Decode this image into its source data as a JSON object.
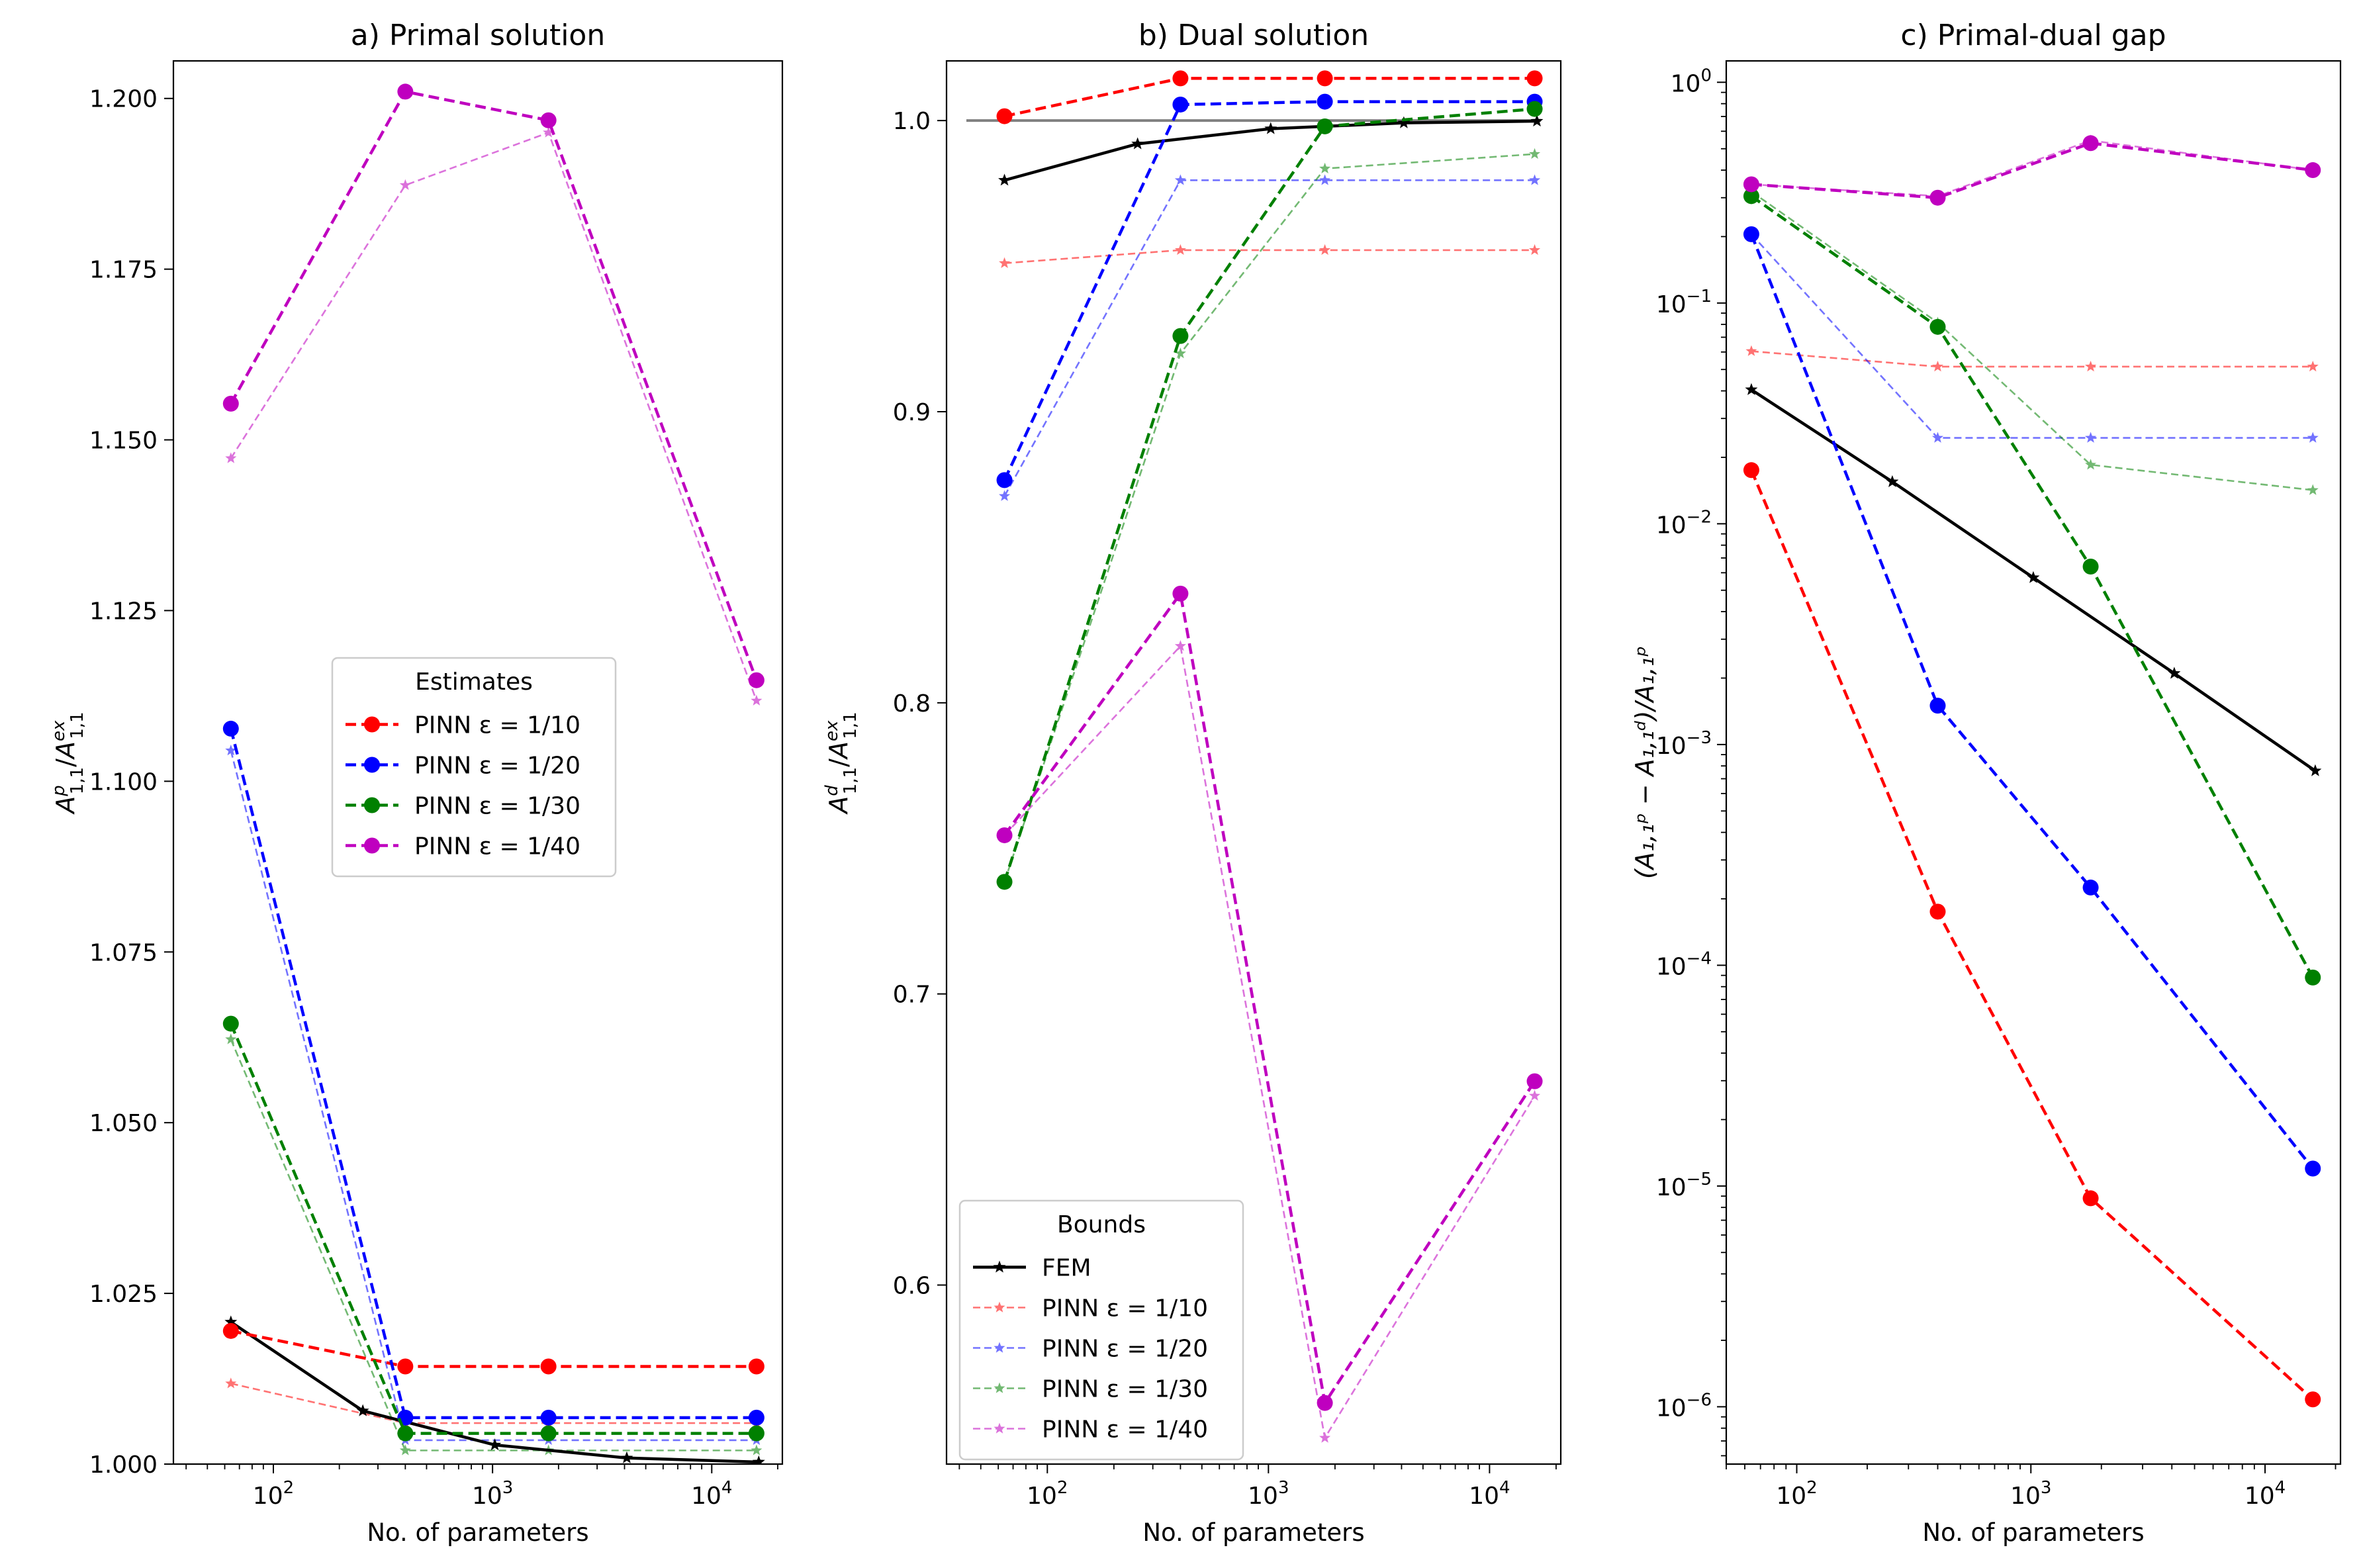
{
  "figure_type": "multi-panel line chart",
  "chart_data": [
    {
      "type": "line",
      "title": "a) Primal solution",
      "xlabel": "No. of parameters",
      "ylabel_main": "A",
      "ylabel_sub": "1,1",
      "ylabel_sup": "p",
      "ylabel_sep": "/",
      "ylabel_main2": "A",
      "ylabel_sub2": "1,1",
      "ylabel_sup2": "ex",
      "xscale": "log",
      "yscale": "linear",
      "xlim": [
        35,
        21000
      ],
      "ylim": [
        1.0,
        1.2055
      ],
      "x_ticks": [
        {
          "value": 100,
          "base": "10",
          "exp": "2"
        },
        {
          "value": 1000,
          "base": "10",
          "exp": "3"
        },
        {
          "value": 10000,
          "base": "10",
          "exp": "4"
        }
      ],
      "y_ticks": [
        {
          "value": 1.0,
          "label": "1.000"
        },
        {
          "value": 1.025,
          "label": "1.025"
        },
        {
          "value": 1.05,
          "label": "1.050"
        },
        {
          "value": 1.075,
          "label": "1.075"
        },
        {
          "value": 1.1,
          "label": "1.100"
        },
        {
          "value": 1.125,
          "label": "1.125"
        },
        {
          "value": 1.15,
          "label": "1.150"
        },
        {
          "value": 1.175,
          "label": "1.175"
        },
        {
          "value": 1.2,
          "label": "1.200"
        }
      ],
      "legend": {
        "title": "Estimates",
        "placement": "center-right",
        "show": [
          "pe10",
          "pe20",
          "pe30",
          "pe40"
        ]
      },
      "series": [
        {
          "key": "fem",
          "name": "FEM",
          "color": "#000000",
          "style": "solid-star",
          "x": [
            64,
            256,
            1024,
            4096,
            16384
          ],
          "y": [
            1.0208,
            1.0078,
            1.0028,
            1.0009,
            1.0003
          ]
        },
        {
          "key": "pb10",
          "name": "PINN ε = 1/10",
          "color": "#ff0000",
          "style": "thin-star",
          "x": [
            64,
            400,
            1800,
            16000
          ],
          "y": [
            1.0118,
            1.006,
            1.006,
            1.006
          ]
        },
        {
          "key": "pb20",
          "name": "PINN ε = 1/20",
          "color": "#0000ff",
          "style": "thin-star",
          "x": [
            64,
            400,
            1800,
            16000
          ],
          "y": [
            1.1045,
            1.0035,
            1.0035,
            1.0035
          ]
        },
        {
          "key": "pb30",
          "name": "PINN ε = 1/30",
          "color": "#008000",
          "style": "thin-star",
          "x": [
            64,
            400,
            1800,
            16000
          ],
          "y": [
            1.0622,
            1.002,
            1.002,
            1.002
          ]
        },
        {
          "key": "pb40",
          "name": "PINN ε = 1/40",
          "color": "#bf00bf",
          "style": "thin-star",
          "x": [
            64,
            400,
            1800,
            16000
          ],
          "y": [
            1.1473,
            1.1873,
            1.195,
            1.1118
          ]
        },
        {
          "key": "pe10",
          "name": "PINN ε = 1/10",
          "color": "#ff0000",
          "style": "dashed-dot",
          "x": [
            64,
            400,
            1800,
            16000
          ],
          "y": [
            1.0195,
            1.0143,
            1.0143,
            1.0143
          ]
        },
        {
          "key": "pe20",
          "name": "PINN ε = 1/20",
          "color": "#0000ff",
          "style": "dashed-dot",
          "x": [
            64,
            400,
            1800,
            16000
          ],
          "y": [
            1.1077,
            1.0068,
            1.0068,
            1.0068
          ]
        },
        {
          "key": "pe30",
          "name": "PINN ε = 1/30",
          "color": "#008000",
          "style": "dashed-dot",
          "x": [
            64,
            400,
            1800,
            16000
          ],
          "y": [
            1.0645,
            1.0045,
            1.0045,
            1.0045
          ]
        },
        {
          "key": "pe40",
          "name": "PINN ε = 1/40",
          "color": "#bf00bf",
          "style": "dashed-dot",
          "x": [
            64,
            400,
            1800,
            16000
          ],
          "y": [
            1.1553,
            1.201,
            1.1968,
            1.1148
          ]
        }
      ]
    },
    {
      "type": "line",
      "title": "b) Dual solution",
      "xlabel": "No. of parameters",
      "ylabel_main": "A",
      "ylabel_sub": "1,1",
      "ylabel_sup": "d",
      "ylabel_sep": "/",
      "ylabel_main2": "A",
      "ylabel_sub2": "1,1",
      "ylabel_sup2": "ex",
      "xscale": "log",
      "yscale": "linear",
      "xlim": [
        35,
        21000
      ],
      "ylim": [
        0.5385,
        1.0205
      ],
      "x_ticks": [
        {
          "value": 100,
          "base": "10",
          "exp": "2"
        },
        {
          "value": 1000,
          "base": "10",
          "exp": "3"
        },
        {
          "value": 10000,
          "base": "10",
          "exp": "4"
        }
      ],
      "y_ticks": [
        {
          "value": 0.6,
          "label": "0.6"
        },
        {
          "value": 0.7,
          "label": "0.7"
        },
        {
          "value": 0.8,
          "label": "0.8"
        },
        {
          "value": 0.9,
          "label": "0.9"
        },
        {
          "value": 1.0,
          "label": "1.0"
        }
      ],
      "reference_line": {
        "value": 1.0,
        "color": "#808080"
      },
      "legend": {
        "title": "Bounds",
        "placement": "lower-left",
        "show": [
          "fem",
          "pb10",
          "pb20",
          "pb30",
          "pb40"
        ]
      },
      "series": [
        {
          "key": "fem",
          "name": "FEM",
          "color": "#000000",
          "style": "solid-star",
          "x": [
            64,
            256,
            1024,
            4096,
            16384
          ],
          "y": [
            0.9795,
            0.992,
            0.9972,
            0.9992,
            0.9998
          ]
        },
        {
          "key": "pb10",
          "name": "PINN ε = 1/10",
          "color": "#ff0000",
          "style": "thin-star",
          "x": [
            64,
            400,
            1800,
            16000
          ],
          "y": [
            0.951,
            0.9555,
            0.9555,
            0.9555
          ]
        },
        {
          "key": "pb20",
          "name": "PINN ε = 1/20",
          "color": "#0000ff",
          "style": "thin-star",
          "x": [
            64,
            400,
            1800,
            16000
          ],
          "y": [
            0.871,
            0.9795,
            0.9795,
            0.9795
          ]
        },
        {
          "key": "pb30",
          "name": "PINN ε = 1/30",
          "color": "#008000",
          "style": "thin-star",
          "x": [
            64,
            400,
            1800,
            16000
          ],
          "y": [
            0.7385,
            0.92,
            0.9835,
            0.9885
          ]
        },
        {
          "key": "pb40",
          "name": "PINN ε = 1/40",
          "color": "#bf00bf",
          "style": "thin-star",
          "x": [
            64,
            400,
            1800,
            16000
          ],
          "y": [
            0.7545,
            0.8195,
            0.5475,
            0.665
          ]
        },
        {
          "key": "pe10",
          "name": "PINN ε = 1/10",
          "color": "#ff0000",
          "style": "dashed-dot",
          "x": [
            64,
            400,
            1800,
            16000
          ],
          "y": [
            1.0015,
            1.0145,
            1.0145,
            1.0145
          ]
        },
        {
          "key": "pe20",
          "name": "PINN ε = 1/20",
          "color": "#0000ff",
          "style": "dashed-dot",
          "x": [
            64,
            400,
            1800,
            16000
          ],
          "y": [
            0.8765,
            1.0055,
            1.0065,
            1.0065
          ]
        },
        {
          "key": "pe30",
          "name": "PINN ε = 1/30",
          "color": "#008000",
          "style": "dashed-dot",
          "x": [
            64,
            400,
            1800,
            16000
          ],
          "y": [
            0.7385,
            0.926,
            0.998,
            1.004
          ]
        },
        {
          "key": "pe40",
          "name": "PINN ε = 1/40",
          "color": "#bf00bf",
          "style": "dashed-dot",
          "x": [
            64,
            400,
            1800,
            16000
          ],
          "y": [
            0.7545,
            0.8375,
            0.5595,
            0.67
          ]
        }
      ]
    },
    {
      "type": "line",
      "title": "c) Primal-dual gap",
      "xlabel": "No. of parameters",
      "ylabel_text": "(A₁,₁ᵖ − A₁,₁ᵈ)/A₁,₁ᵖ",
      "xscale": "log",
      "yscale": "log",
      "xlim": [
        50,
        21000
      ],
      "ylim": [
        5.5e-07,
        1.25
      ],
      "x_ticks": [
        {
          "value": 100,
          "base": "10",
          "exp": "2"
        },
        {
          "value": 1000,
          "base": "10",
          "exp": "3"
        },
        {
          "value": 10000,
          "base": "10",
          "exp": "4"
        }
      ],
      "y_ticks": [
        {
          "value": 1e-06,
          "base": "10",
          "exp": "−6"
        },
        {
          "value": 1e-05,
          "base": "10",
          "exp": "−5"
        },
        {
          "value": 0.0001,
          "base": "10",
          "exp": "−4"
        },
        {
          "value": 0.001,
          "base": "10",
          "exp": "−3"
        },
        {
          "value": 0.01,
          "base": "10",
          "exp": "−2"
        },
        {
          "value": 0.1,
          "base": "10",
          "exp": "−1"
        },
        {
          "value": 1,
          "base": "10",
          "exp": "0"
        }
      ],
      "series": [
        {
          "key": "fem",
          "name": "FEM",
          "color": "#000000",
          "style": "solid-star",
          "x": [
            64,
            256,
            1024,
            4096,
            16384
          ],
          "y": [
            0.0405,
            0.0155,
            0.0057,
            0.0021,
            0.00076
          ]
        },
        {
          "key": "pb10",
          "name": "PINN ε = 1/10",
          "color": "#ff0000",
          "style": "thin-star",
          "x": [
            64,
            400,
            1800,
            16000
          ],
          "y": [
            0.0605,
            0.0515,
            0.0515,
            0.0515
          ]
        },
        {
          "key": "pb20",
          "name": "PINN ε = 1/20",
          "color": "#0000ff",
          "style": "thin-star",
          "x": [
            64,
            400,
            1800,
            16000
          ],
          "y": [
            0.205,
            0.0245,
            0.0245,
            0.0245
          ]
        },
        {
          "key": "pb30",
          "name": "PINN ε = 1/30",
          "color": "#008000",
          "style": "thin-star",
          "x": [
            64,
            400,
            1800,
            16000
          ],
          "y": [
            0.32,
            0.0815,
            0.0185,
            0.0142
          ]
        },
        {
          "key": "pb40",
          "name": "PINN ε = 1/40",
          "color": "#bf00bf",
          "style": "thin-star",
          "x": [
            64,
            400,
            1800,
            16000
          ],
          "y": [
            0.345,
            0.305,
            0.545,
            0.4
          ]
        },
        {
          "key": "pe10",
          "name": "PINN ε = 1/10",
          "color": "#ff0000",
          "style": "dashed-dot",
          "x": [
            64,
            400,
            1800,
            16000
          ],
          "y": [
            0.0175,
            0.000175,
            8.8e-06,
            1.08e-06
          ]
        },
        {
          "key": "pe20",
          "name": "PINN ε = 1/20",
          "color": "#0000ff",
          "style": "dashed-dot",
          "x": [
            64,
            400,
            1800,
            16000
          ],
          "y": [
            0.205,
            0.0015,
            0.000225,
            1.2e-05
          ]
        },
        {
          "key": "pe30",
          "name": "PINN ε = 1/30",
          "color": "#008000",
          "style": "dashed-dot",
          "x": [
            64,
            400,
            1800,
            16000
          ],
          "y": [
            0.305,
            0.078,
            0.0064,
            8.8e-05
          ]
        },
        {
          "key": "pe40",
          "name": "PINN ε = 1/40",
          "color": "#bf00bf",
          "style": "dashed-dot",
          "x": [
            64,
            400,
            1800,
            16000
          ],
          "y": [
            0.345,
            0.3,
            0.53,
            0.4
          ]
        }
      ]
    }
  ]
}
